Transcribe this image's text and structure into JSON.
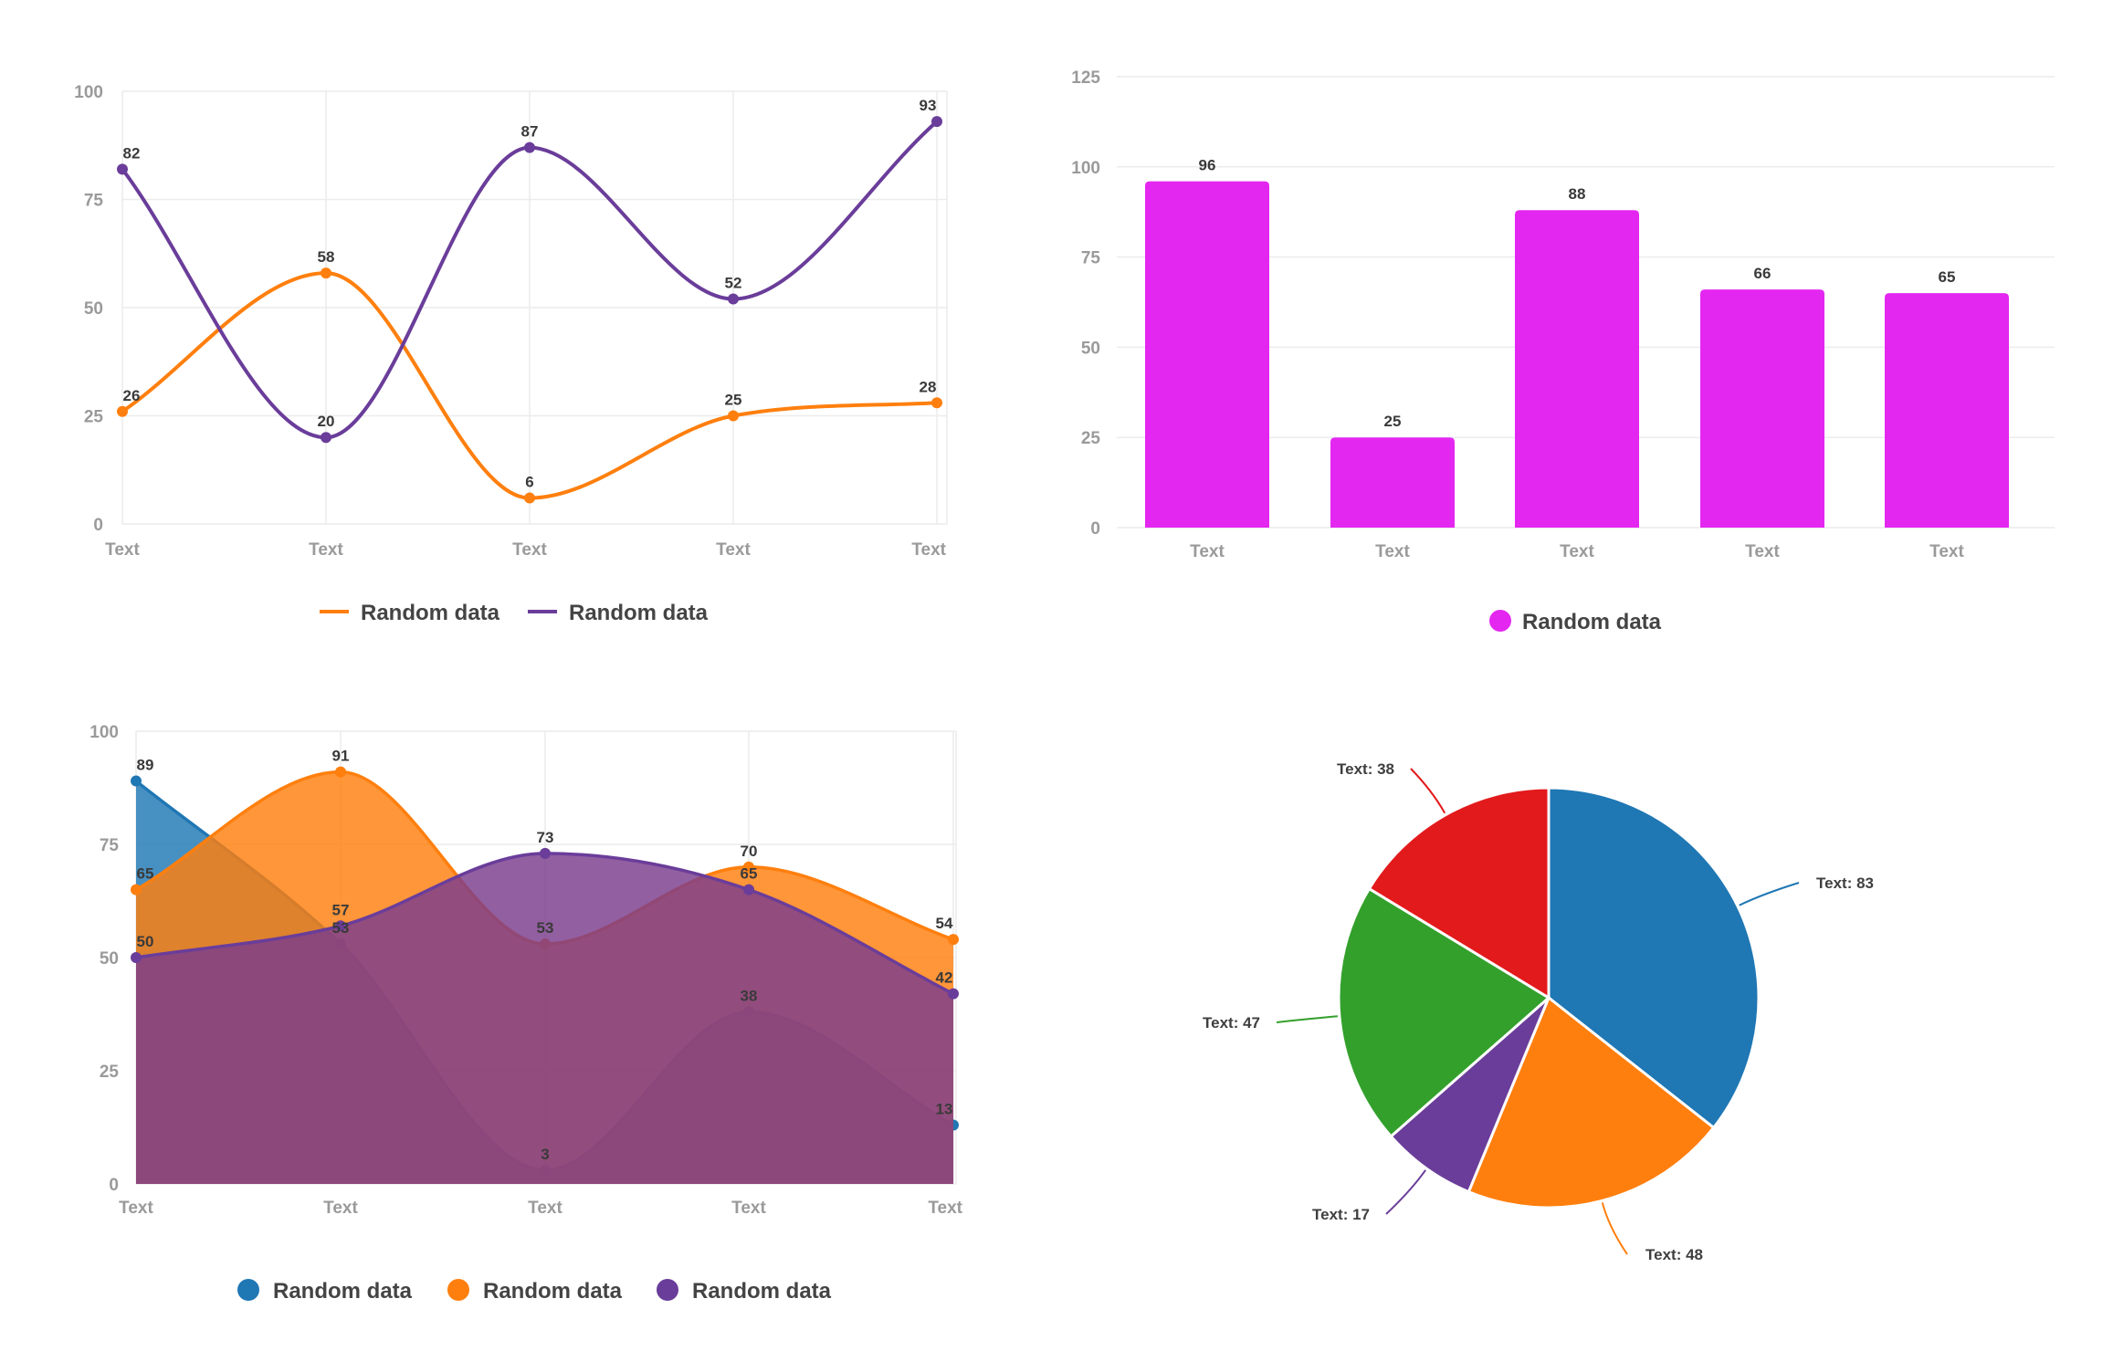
{
  "chart_data": [
    {
      "type": "line",
      "title": "",
      "categories": [
        "Text",
        "Text",
        "Text",
        "Text",
        "Text"
      ],
      "ylim": [
        0,
        100
      ],
      "yticks": [
        0,
        25,
        50,
        75,
        100
      ],
      "grid": true,
      "legend_position": "bottom",
      "series": [
        {
          "name": "Random data",
          "color": "#ff7f0e",
          "values": [
            26,
            58,
            6,
            25,
            28
          ]
        },
        {
          "name": "Random data",
          "color": "#6a3d9a",
          "values": [
            82,
            20,
            87,
            52,
            93
          ]
        }
      ]
    },
    {
      "type": "bar",
      "title": "",
      "categories": [
        "Text",
        "Text",
        "Text",
        "Text",
        "Text"
      ],
      "ylim": [
        0,
        125
      ],
      "yticks": [
        0,
        25,
        50,
        75,
        100,
        125
      ],
      "grid": true,
      "legend_position": "bottom",
      "series": [
        {
          "name": "Random data",
          "color": "#e427f0",
          "values": [
            96,
            25,
            88,
            66,
            65
          ]
        }
      ]
    },
    {
      "type": "area",
      "title": "",
      "categories": [
        "Text",
        "Text",
        "Text",
        "Text",
        "Text"
      ],
      "ylim": [
        0,
        100
      ],
      "yticks": [
        0,
        25,
        50,
        75,
        100
      ],
      "grid": true,
      "legend_position": "bottom",
      "series": [
        {
          "name": "Random data",
          "color": "#1f77b4",
          "values": [
            89,
            53,
            3,
            38,
            13
          ]
        },
        {
          "name": "Random data",
          "color": "#ff7f0e",
          "values": [
            65,
            91,
            53,
            70,
            54
          ]
        },
        {
          "name": "Random data",
          "color": "#6a3d9a",
          "values": [
            50,
            57,
            73,
            65,
            42
          ]
        }
      ]
    },
    {
      "type": "pie",
      "title": "",
      "slices": [
        {
          "label": "Text: 83",
          "name": "Text",
          "value": 83,
          "color": "#1f77b4"
        },
        {
          "label": "Text: 48",
          "name": "Text",
          "value": 48,
          "color": "#ff7f0e"
        },
        {
          "label": "Text: 17",
          "name": "Text",
          "value": 17,
          "color": "#6a3d9a"
        },
        {
          "label": "Text: 47",
          "name": "Text",
          "value": 47,
          "color": "#33a02c"
        },
        {
          "label": "Text: 38",
          "name": "Text",
          "value": 38,
          "color": "#e31a1c"
        }
      ]
    }
  ]
}
